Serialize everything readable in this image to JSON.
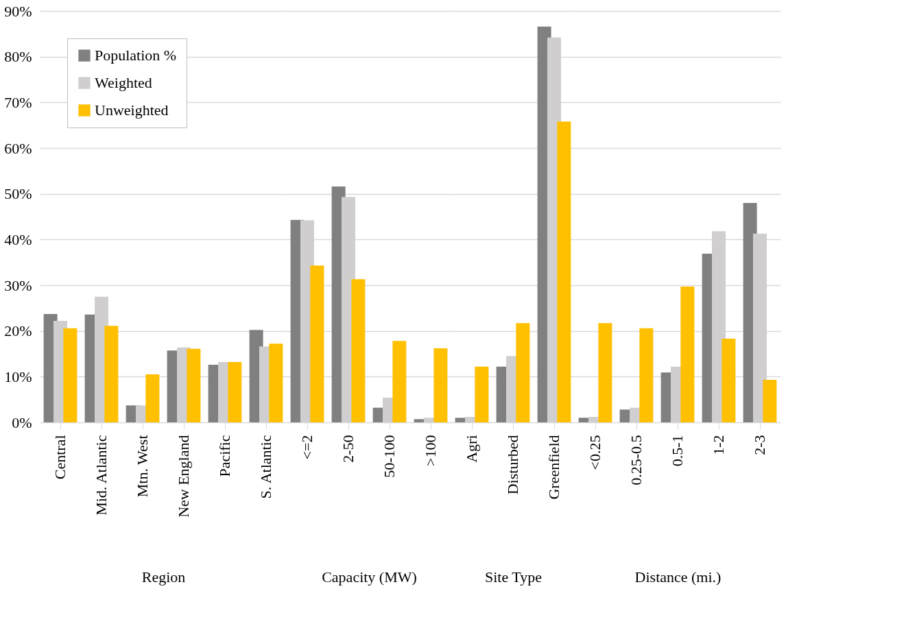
{
  "chart_data": [
    {
      "type": "bar",
      "xlabel": "Region",
      "categories": [
        "Central",
        "Mid. Atlantic",
        "Mtn. West",
        "New England",
        "Pacific",
        "S. Atlantic"
      ],
      "series": [
        {
          "name": "Population %",
          "color": "#808080",
          "values": [
            23.7,
            23.6,
            3.7,
            15.7,
            12.6,
            20.2
          ]
        },
        {
          "name": "Weighted",
          "color": "#d0cece",
          "values": [
            22.2,
            27.5,
            3.7,
            16.4,
            13.2,
            16.6
          ]
        },
        {
          "name": "Unweighted",
          "color": "#ffc000",
          "values": [
            20.6,
            21.1,
            10.5,
            16.1,
            13.2,
            17.2
          ]
        }
      ],
      "ylim": [
        0,
        90
      ],
      "yticks": [
        {
          "value": 0,
          "label": "0%"
        },
        {
          "value": 10,
          "label": "10%"
        },
        {
          "value": 20,
          "label": "20%"
        },
        {
          "value": 30,
          "label": "30%"
        },
        {
          "value": 40,
          "label": "40%"
        },
        {
          "value": 50,
          "label": "50%"
        },
        {
          "value": 60,
          "label": "60%"
        },
        {
          "value": 70,
          "label": "70%"
        },
        {
          "value": 80,
          "label": "80%"
        },
        {
          "value": 90,
          "label": "90%"
        }
      ],
      "grid": "y",
      "legend": "top left"
    },
    {
      "type": "bar",
      "xlabel": "Capacity (MW)",
      "categories": [
        "<=2",
        "2-50",
        "50-100",
        ">100"
      ],
      "series": [
        {
          "name": "Population %",
          "color": "#808080",
          "values": [
            44.3,
            51.6,
            3.2,
            0.7
          ]
        },
        {
          "name": "Weighted",
          "color": "#d0cece",
          "values": [
            44.2,
            49.3,
            5.4,
            1.0
          ]
        },
        {
          "name": "Unweighted",
          "color": "#ffc000",
          "values": [
            34.3,
            31.3,
            17.8,
            16.2
          ]
        }
      ],
      "ylim": [
        0,
        90
      ],
      "yticks": [
        0,
        10,
        20,
        30,
        40,
        50,
        60,
        70,
        80,
        90
      ],
      "grid": "y",
      "tick_labels": "x"
    },
    {
      "type": "bar",
      "xlabel": "Site Type",
      "categories": [
        "Agri",
        "Disturbed",
        "Greenfield"
      ],
      "series": [
        {
          "name": "Population %",
          "color": "#808080",
          "values": [
            1.0,
            12.2,
            86.6
          ]
        },
        {
          "name": "Weighted",
          "color": "#d0cece",
          "values": [
            1.2,
            14.5,
            84.2
          ]
        },
        {
          "name": "Unweighted",
          "color": "#ffc000",
          "values": [
            12.2,
            21.7,
            65.8
          ]
        }
      ],
      "ylim": [
        0,
        90
      ],
      "yticks": [
        0,
        10,
        20,
        30,
        40,
        50,
        60,
        70,
        80,
        90
      ],
      "grid": "y",
      "tick_labels": "x"
    },
    {
      "type": "bar",
      "xlabel": "Distance (mi.)",
      "categories": [
        "<0.25",
        "0.25-0.5",
        "0.5-1",
        "1-2",
        "2-3"
      ],
      "series": [
        {
          "name": "Population %",
          "color": "#808080",
          "values": [
            1.0,
            2.8,
            10.9,
            36.9,
            48.0
          ]
        },
        {
          "name": "Weighted",
          "color": "#d0cece",
          "values": [
            1.2,
            3.2,
            12.2,
            41.8,
            41.3
          ]
        },
        {
          "name": "Unweighted",
          "color": "#ffc000",
          "values": [
            21.7,
            20.6,
            29.7,
            18.3,
            9.3
          ]
        }
      ],
      "ylim": [
        0,
        90
      ],
      "yticks": [
        0,
        10,
        20,
        30,
        40,
        50,
        60,
        70,
        80,
        90
      ],
      "grid": "y",
      "tick_labels": "x"
    }
  ]
}
